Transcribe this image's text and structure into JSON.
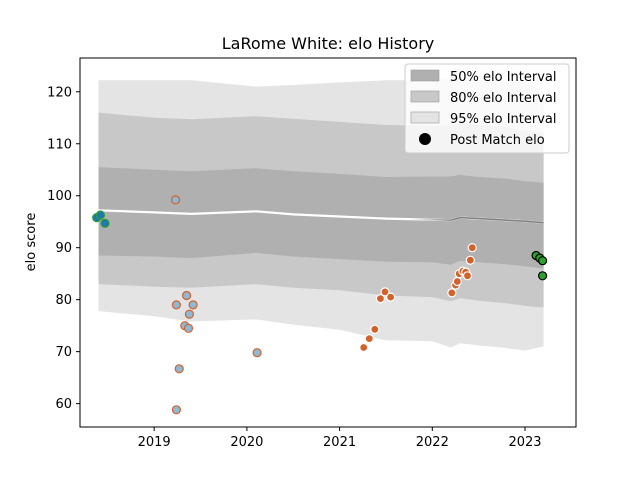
{
  "chart_data": {
    "type": "line",
    "title": "LaRome White: elo History",
    "xlabel": "",
    "ylabel": "elo score",
    "xlim": [
      2018.2,
      2023.55
    ],
    "ylim": [
      55.5,
      126.5
    ],
    "xticks": [
      2019,
      2020,
      2021,
      2022,
      2023
    ],
    "yticks": [
      60,
      70,
      80,
      90,
      100,
      110,
      120
    ],
    "grid": false,
    "legend_position": "top-right",
    "legend": [
      {
        "label": "50% elo Interval",
        "kind": "band",
        "color": "#b0b0b0"
      },
      {
        "label": "80% elo Interval",
        "kind": "band",
        "color": "#c8c8c8"
      },
      {
        "label": "95% elo Interval",
        "kind": "band",
        "color": "#e4e4e4"
      },
      {
        "label": "Post Match elo",
        "kind": "marker",
        "color": "#000000"
      }
    ],
    "bands": {
      "x": [
        2018.4,
        2019.0,
        2019.4,
        2020.1,
        2020.5,
        2021.0,
        2021.5,
        2022.0,
        2022.2,
        2022.3,
        2022.5,
        2022.8,
        2023.0,
        2023.2
      ],
      "mean": [
        97.2,
        96.8,
        96.5,
        97.0,
        96.4,
        96.0,
        95.6,
        95.4,
        95.3,
        95.8,
        95.6,
        95.3,
        95.1,
        94.8
      ],
      "i50": [
        [
          88.5,
          105.5
        ],
        [
          88.3,
          105.0
        ],
        [
          88.0,
          104.7
        ],
        [
          89.0,
          105.3
        ],
        [
          88.3,
          104.7
        ],
        [
          87.8,
          104.2
        ],
        [
          87.3,
          103.6
        ],
        [
          87.2,
          103.7
        ],
        [
          86.7,
          103.7
        ],
        [
          87.5,
          104.0
        ],
        [
          87.2,
          103.6
        ],
        [
          86.8,
          103.3
        ],
        [
          86.4,
          102.8
        ],
        [
          86.0,
          102.5
        ]
      ],
      "i80": [
        [
          83.0,
          116.0
        ],
        [
          82.5,
          115.0
        ],
        [
          82.3,
          114.7
        ],
        [
          83.0,
          115.3
        ],
        [
          82.3,
          114.8
        ],
        [
          81.8,
          114.2
        ],
        [
          80.8,
          113.6
        ],
        [
          80.5,
          113.5
        ],
        [
          79.7,
          113.5
        ],
        [
          80.3,
          114.0
        ],
        [
          79.8,
          113.6
        ],
        [
          79.3,
          113.2
        ],
        [
          78.8,
          112.5
        ],
        [
          78.5,
          112.0
        ]
      ],
      "i95": [
        [
          77.8,
          122.2
        ],
        [
          76.8,
          122.2
        ],
        [
          75.8,
          122.2
        ],
        [
          76.2,
          121.0
        ],
        [
          75.2,
          121.3
        ],
        [
          74.2,
          121.8
        ],
        [
          72.2,
          122.2
        ],
        [
          72.0,
          122.2
        ],
        [
          70.8,
          122.6
        ],
        [
          71.6,
          122.6
        ],
        [
          71.2,
          122.5
        ],
        [
          70.7,
          122.0
        ],
        [
          70.2,
          121.8
        ],
        [
          71.0,
          120.0
        ]
      ]
    },
    "points": [
      {
        "x": 2018.38,
        "y": 95.8,
        "style": "blue-green"
      },
      {
        "x": 2018.42,
        "y": 96.3,
        "style": "blue-green"
      },
      {
        "x": 2018.47,
        "y": 94.7,
        "style": "blue-green"
      },
      {
        "x": 2019.23,
        "y": 99.2,
        "style": "blue-orange"
      },
      {
        "x": 2019.24,
        "y": 79.0,
        "style": "blue-orange"
      },
      {
        "x": 2019.24,
        "y": 58.8,
        "style": "blue-orange"
      },
      {
        "x": 2019.27,
        "y": 66.7,
        "style": "blue-orange"
      },
      {
        "x": 2019.33,
        "y": 75.0,
        "style": "blue-orange"
      },
      {
        "x": 2019.35,
        "y": 80.8,
        "style": "blue-orange"
      },
      {
        "x": 2019.37,
        "y": 74.5,
        "style": "blue-orange"
      },
      {
        "x": 2019.38,
        "y": 77.2,
        "style": "blue-orange"
      },
      {
        "x": 2019.42,
        "y": 79.0,
        "style": "blue-orange"
      },
      {
        "x": 2020.11,
        "y": 69.8,
        "style": "blue-orange"
      },
      {
        "x": 2021.26,
        "y": 70.8,
        "style": "orange"
      },
      {
        "x": 2021.32,
        "y": 72.5,
        "style": "orange"
      },
      {
        "x": 2021.38,
        "y": 74.3,
        "style": "orange"
      },
      {
        "x": 2021.44,
        "y": 80.2,
        "style": "orange"
      },
      {
        "x": 2021.49,
        "y": 81.5,
        "style": "orange"
      },
      {
        "x": 2021.55,
        "y": 80.5,
        "style": "orange"
      },
      {
        "x": 2022.21,
        "y": 81.3,
        "style": "orange"
      },
      {
        "x": 2022.25,
        "y": 82.8,
        "style": "orange"
      },
      {
        "x": 2022.27,
        "y": 83.5,
        "style": "orange"
      },
      {
        "x": 2022.29,
        "y": 85.0,
        "style": "orange"
      },
      {
        "x": 2022.33,
        "y": 85.5,
        "style": "orange"
      },
      {
        "x": 2022.36,
        "y": 85.3,
        "style": "orange"
      },
      {
        "x": 2022.38,
        "y": 84.6,
        "style": "orange"
      },
      {
        "x": 2022.41,
        "y": 87.6,
        "style": "orange"
      },
      {
        "x": 2022.43,
        "y": 90.0,
        "style": "orange"
      },
      {
        "x": 2023.12,
        "y": 88.5,
        "style": "green-black"
      },
      {
        "x": 2023.16,
        "y": 88.0,
        "style": "green-black"
      },
      {
        "x": 2023.19,
        "y": 87.5,
        "style": "green-black"
      },
      {
        "x": 2023.19,
        "y": 84.6,
        "style": "green-black"
      }
    ],
    "styles": {
      "blue-green": {
        "fill": "#1f77b4",
        "stroke": "#2ca02c"
      },
      "blue-orange": {
        "fill": "#8fb8d4",
        "stroke": "#d2622a"
      },
      "orange": {
        "fill": "#d2622a",
        "stroke": "#ffffff"
      },
      "green-black": {
        "fill": "#2ca02c",
        "stroke": "#000000"
      }
    },
    "colors": {
      "band50": "#b0b0b0",
      "band80": "#c8c8c8",
      "band95": "#e4e4e4",
      "mean_light": "#ffffff",
      "mean_dark": "#808080"
    }
  }
}
